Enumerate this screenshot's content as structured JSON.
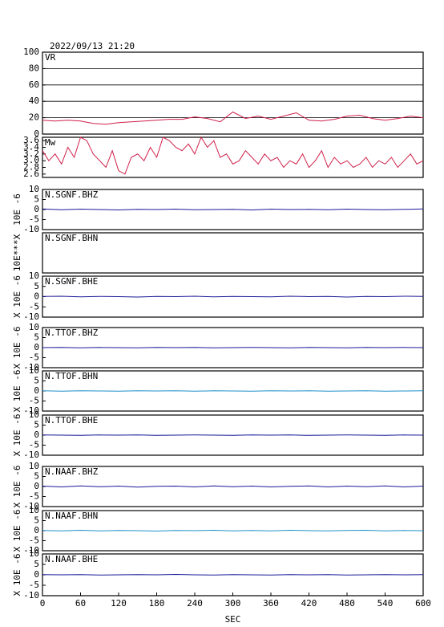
{
  "chart_data": [
    {
      "type": "line",
      "title": "2022/09/13 21:20",
      "label": "VR",
      "xlim": [
        0,
        600
      ],
      "ylim": [
        0,
        100
      ],
      "yticks": [
        0,
        20,
        40,
        60,
        80,
        100
      ],
      "grid": true,
      "color": "#d0204a",
      "x": [
        0,
        20,
        40,
        60,
        80,
        100,
        120,
        140,
        160,
        180,
        200,
        220,
        240,
        260,
        280,
        300,
        320,
        340,
        360,
        380,
        400,
        420,
        440,
        460,
        480,
        500,
        520,
        540,
        560,
        580,
        600
      ],
      "values": [
        17,
        16,
        17,
        16,
        13,
        12,
        14,
        15,
        16,
        17,
        18,
        18,
        21,
        19,
        15,
        27,
        19,
        22,
        18,
        22,
        26,
        17,
        16,
        18,
        22,
        23,
        19,
        17,
        19,
        22,
        20
      ]
    },
    {
      "type": "line",
      "label": "Mw",
      "xlim": [
        0,
        600
      ],
      "ylim": [
        2.5,
        3.7
      ],
      "yticks": [
        {
          "value": 2.6,
          "label": "2.6"
        },
        {
          "value": 2.8,
          "label": "2.8"
        },
        {
          "value": 3,
          "label": "3.0"
        },
        {
          "value": 3.2,
          "label": "3.2"
        },
        {
          "value": 3.4,
          "label": "3.4"
        },
        {
          "value": 3.6,
          "label": "3.6"
        }
      ],
      "grid": false,
      "color": "#d0204a",
      "x": [
        0,
        10,
        20,
        30,
        40,
        50,
        60,
        70,
        80,
        90,
        100,
        110,
        120,
        130,
        140,
        150,
        160,
        170,
        180,
        190,
        200,
        210,
        220,
        230,
        240,
        250,
        260,
        270,
        280,
        290,
        300,
        310,
        320,
        330,
        340,
        350,
        360,
        370,
        380,
        390,
        400,
        410,
        420,
        430,
        440,
        450,
        460,
        470,
        480,
        490,
        500,
        510,
        520,
        530,
        540,
        550,
        560,
        570,
        580,
        590,
        600
      ],
      "values": [
        3.3,
        3.0,
        3.2,
        2.9,
        3.4,
        3.1,
        3.7,
        3.6,
        3.2,
        3.0,
        2.8,
        3.3,
        2.7,
        2.6,
        3.1,
        3.2,
        3.0,
        3.4,
        3.1,
        3.7,
        3.6,
        3.4,
        3.3,
        3.5,
        3.2,
        3.7,
        3.4,
        3.6,
        3.1,
        3.2,
        2.9,
        3.0,
        3.3,
        3.1,
        2.9,
        3.2,
        3.0,
        3.1,
        2.8,
        3.0,
        2.9,
        3.2,
        2.8,
        3.0,
        3.3,
        2.8,
        3.1,
        2.9,
        3.0,
        2.8,
        2.9,
        3.1,
        2.8,
        3.0,
        2.9,
        3.1,
        2.8,
        3.0,
        3.2,
        2.9,
        3.0
      ]
    },
    {
      "type": "line",
      "label": "N.SGNF.BHZ",
      "ylabel": "10E -6",
      "xlim": [
        0,
        600
      ],
      "ylim": [
        -10,
        10
      ],
      "yticks": [
        -10,
        -5,
        0,
        5,
        10
      ],
      "color": "#1a1a9a",
      "x": [
        0,
        30,
        60,
        90,
        120,
        150,
        180,
        210,
        240,
        270,
        300,
        330,
        360,
        390,
        420,
        450,
        480,
        510,
        540,
        570,
        600
      ],
      "values": [
        0.3,
        -0.1,
        0.2,
        0,
        -0.2,
        0.1,
        0,
        0.2,
        -0.1,
        0,
        0.1,
        -0.2,
        0.2,
        0,
        0.1,
        -0.1,
        0.2,
        0,
        -0.1,
        0.1,
        0.3
      ]
    },
    {
      "type": "line",
      "label": "N.SGNF.BHN",
      "ylabel": "10E***X",
      "xlim": [
        0,
        600
      ]
    },
    {
      "type": "line",
      "label": "N.SGNF.BHE",
      "ylabel": "X 10E -6",
      "xlim": [
        0,
        600
      ],
      "ylim": [
        -10,
        10
      ],
      "yticks": [
        -10,
        -5,
        0,
        5,
        10
      ],
      "color": "#1a1a9a",
      "x": [
        0,
        30,
        60,
        90,
        120,
        150,
        180,
        210,
        240,
        270,
        300,
        330,
        360,
        390,
        420,
        450,
        480,
        510,
        540,
        570,
        600
      ],
      "values": [
        0.1,
        0.2,
        -0.1,
        0.1,
        0,
        -0.2,
        0.1,
        0,
        0.2,
        -0.1,
        0.1,
        0,
        -0.1,
        0.2,
        0,
        0.1,
        -0.2,
        0.1,
        0,
        0.2,
        0.1
      ]
    },
    {
      "type": "line",
      "label": "N.TTOF.BHZ",
      "ylabel": "X 10E -6",
      "xlim": [
        0,
        600
      ],
      "ylim": [
        -10,
        10
      ],
      "yticks": [
        -10,
        -5,
        0,
        5,
        10
      ],
      "color": "#1a1a9a",
      "x": [
        0,
        30,
        60,
        90,
        120,
        150,
        180,
        210,
        240,
        270,
        300,
        330,
        360,
        390,
        420,
        450,
        480,
        510,
        540,
        570,
        600
      ],
      "values": [
        0,
        0.1,
        -0.1,
        0.1,
        0,
        -0.1,
        0.1,
        0,
        0.1,
        -0.1,
        0,
        0.1,
        0,
        -0.1,
        0.1,
        0,
        -0.1,
        0.1,
        0,
        0.1,
        0
      ]
    },
    {
      "type": "line",
      "label": "N.TTOF.BHN",
      "ylabel": "X 10E -6",
      "xlim": [
        0,
        600
      ],
      "ylim": [
        -10,
        10
      ],
      "yticks": [
        -10,
        -5,
        0,
        5,
        10
      ],
      "color": "#1e90c8",
      "x": [
        0,
        30,
        60,
        90,
        120,
        150,
        180,
        210,
        240,
        270,
        300,
        330,
        360,
        390,
        420,
        450,
        480,
        510,
        540,
        570,
        600
      ],
      "values": [
        0.1,
        -0.1,
        0.1,
        0,
        -0.1,
        0.1,
        0,
        0.1,
        -0.1,
        0.1,
        0,
        -0.1,
        0.1,
        0,
        0.1,
        -0.1,
        0,
        0.1,
        -0.1,
        0,
        0.1
      ]
    },
    {
      "type": "line",
      "label": "N.TTOF.BHE",
      "ylabel": "X 10E -6",
      "xlim": [
        0,
        600
      ],
      "ylim": [
        -10,
        10
      ],
      "yticks": [
        -10,
        -5,
        0,
        5,
        10
      ],
      "color": "#1a1a9a",
      "x": [
        0,
        30,
        60,
        90,
        120,
        150,
        180,
        210,
        240,
        270,
        300,
        330,
        360,
        390,
        420,
        450,
        480,
        510,
        540,
        570,
        600
      ],
      "values": [
        0.1,
        0,
        -0.1,
        0.1,
        0,
        0.1,
        -0.1,
        0,
        0.1,
        0,
        -0.1,
        0.1,
        0,
        0.1,
        -0.1,
        0,
        0.1,
        0,
        -0.1,
        0.1,
        0
      ]
    },
    {
      "type": "line",
      "label": "N.NAAF.BHZ",
      "ylabel": "X 10E -6",
      "xlim": [
        0,
        600
      ],
      "ylim": [
        -10,
        10
      ],
      "yticks": [
        -10,
        -5,
        0,
        5,
        10
      ],
      "color": "#1a1a9a",
      "x": [
        0,
        30,
        60,
        90,
        120,
        150,
        180,
        210,
        240,
        270,
        300,
        330,
        360,
        390,
        420,
        450,
        480,
        510,
        540,
        570,
        600
      ],
      "values": [
        0.2,
        -0.2,
        0.3,
        -0.1,
        0.2,
        -0.3,
        0.1,
        0.2,
        -0.2,
        0.3,
        -0.1,
        0.2,
        -0.2,
        0.1,
        0.3,
        -0.2,
        0.2,
        -0.1,
        0.3,
        -0.2,
        0.2
      ]
    },
    {
      "type": "line",
      "label": "N.NAAF.BHN",
      "ylabel": "X 10E -6",
      "xlim": [
        0,
        600
      ],
      "ylim": [
        -10,
        10
      ],
      "yticks": [
        -10,
        -5,
        0,
        5,
        10
      ],
      "color": "#1e90c8",
      "x": [
        0,
        30,
        60,
        90,
        120,
        150,
        180,
        210,
        240,
        270,
        300,
        330,
        360,
        390,
        420,
        450,
        480,
        510,
        540,
        570,
        600
      ],
      "values": [
        0.1,
        -0.1,
        0.2,
        -0.1,
        0.1,
        0,
        -0.2,
        0.1,
        0,
        0.2,
        -0.1,
        0.1,
        -0.1,
        0.2,
        0,
        -0.1,
        0.1,
        0.2,
        -0.1,
        0.1,
        0
      ]
    },
    {
      "type": "line",
      "label": "N.NAAF.BHE",
      "ylabel": "X 10E -6",
      "xlabel": "SEC",
      "xlim": [
        0,
        600
      ],
      "xticks": [
        0,
        60,
        120,
        180,
        240,
        300,
        360,
        420,
        480,
        540,
        600
      ],
      "ylim": [
        -10,
        10
      ],
      "yticks": [
        -10,
        -5,
        0,
        5,
        10
      ],
      "color": "#1a1a9a",
      "x": [
        0,
        30,
        60,
        90,
        120,
        150,
        180,
        210,
        240,
        270,
        300,
        330,
        360,
        390,
        420,
        450,
        480,
        510,
        540,
        570,
        600
      ],
      "values": [
        0.1,
        0,
        0.1,
        -0.1,
        0,
        0.1,
        0,
        0.2,
        0,
        -0.1,
        0.1,
        0,
        -0.1,
        0.1,
        0,
        0.1,
        -0.1,
        0,
        0.1,
        0,
        0.1
      ]
    }
  ]
}
